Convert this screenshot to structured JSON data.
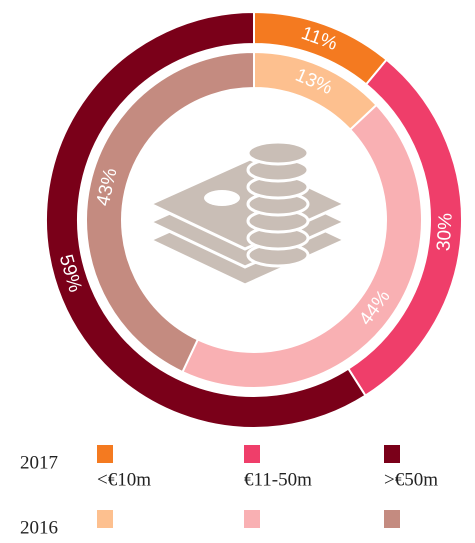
{
  "chart_data": {
    "type": "donut",
    "categories": [
      "<€10m",
      "€11-50m",
      ">€50m"
    ],
    "series": [
      {
        "name": "2017",
        "colors": [
          "#f47a20",
          "#ef3e6a",
          "#7a0019"
        ],
        "values": [
          11,
          30,
          59
        ],
        "value_labels": [
          "11%",
          "30%",
          "59%"
        ]
      },
      {
        "name": "2016",
        "colors": [
          "#fdc08f",
          "#f9b0b3",
          "#c48b80"
        ],
        "values": [
          13,
          44,
          43
        ],
        "value_labels": [
          "13%",
          "44%",
          "43%"
        ]
      }
    ]
  }
}
